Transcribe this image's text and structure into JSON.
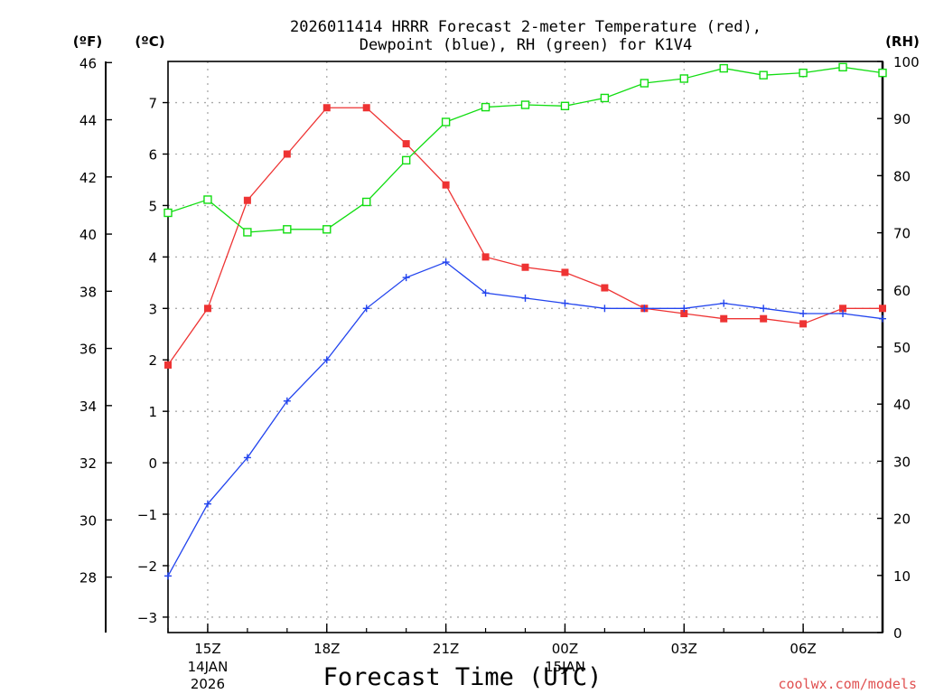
{
  "title": {
    "line1": "2026011414 HRRR Forecast 2-meter Temperature (red),",
    "line2": "Dewpoint (blue), RH (green) for K1V4"
  },
  "units": {
    "fahrenheit": "(ºF)",
    "celsius": "(ºC)",
    "rh": "(RH)"
  },
  "xlabel": "Forecast Time (UTC)",
  "credit": "coolwx.com/models",
  "colors": {
    "temperature": "#ee3333",
    "dewpoint": "#2244ee",
    "rh": "#11dd11",
    "grid": "#aaaaaa",
    "credit": "#e05050"
  },
  "chart_data": {
    "type": "line",
    "title": "2026011414 HRRR Forecast 2-meter Temperature (red), Dewpoint (blue), RH (green) for K1V4",
    "xlabel": "Forecast Time (UTC)",
    "x_hours": [
      14,
      15,
      16,
      17,
      18,
      19,
      20,
      21,
      22,
      23,
      24,
      25,
      26,
      27,
      28,
      29,
      30,
      31,
      32
    ],
    "x_range": [
      14,
      32
    ],
    "x_ticks": [
      {
        "hour": 15,
        "label": "15Z",
        "sub": [
          "14JAN",
          "2026"
        ]
      },
      {
        "hour": 18,
        "label": "18Z",
        "sub": []
      },
      {
        "hour": 21,
        "label": "21Z",
        "sub": []
      },
      {
        "hour": 24,
        "label": "00Z",
        "sub": [
          "15JAN"
        ]
      },
      {
        "hour": 27,
        "label": "03Z",
        "sub": []
      },
      {
        "hour": 30,
        "label": "06Z",
        "sub": []
      }
    ],
    "y_celsius_range": [
      -3.3,
      7.8
    ],
    "y_celsius_ticks": [
      -3,
      -2,
      -1,
      0,
      1,
      2,
      3,
      4,
      5,
      6,
      7
    ],
    "y_fahrenheit_ticks": [
      28,
      30,
      32,
      34,
      36,
      38,
      40,
      42,
      44,
      46
    ],
    "y_rh_range": [
      0,
      100
    ],
    "y_rh_ticks": [
      0,
      10,
      20,
      30,
      40,
      50,
      60,
      70,
      80,
      90,
      100
    ],
    "series": [
      {
        "name": "Temperature",
        "axis": "celsius",
        "marker": "filled-square",
        "color": "#ee3333",
        "values": [
          1.9,
          3.0,
          5.1,
          6.0,
          6.9,
          6.9,
          6.2,
          5.4,
          4.0,
          3.8,
          3.7,
          3.4,
          3.0,
          2.9,
          2.8,
          2.8,
          2.7,
          3.0,
          3.0
        ]
      },
      {
        "name": "Dewpoint",
        "axis": "celsius",
        "marker": "plus",
        "color": "#2244ee",
        "values": [
          -2.2,
          -0.8,
          0.1,
          1.2,
          2.0,
          3.0,
          3.6,
          3.9,
          3.3,
          3.2,
          3.1,
          3.0,
          3.0,
          3.0,
          3.1,
          3.0,
          2.9,
          2.9,
          2.8
        ]
      },
      {
        "name": "RH",
        "axis": "rh",
        "marker": "open-square",
        "color": "#11dd11",
        "values": [
          73.5,
          75.8,
          70.1,
          70.6,
          70.6,
          75.4,
          82.7,
          89.4,
          92.0,
          92.4,
          92.2,
          93.6,
          96.2,
          97.0,
          98.8,
          97.6,
          98.0,
          99.0,
          98.0
        ]
      }
    ]
  }
}
